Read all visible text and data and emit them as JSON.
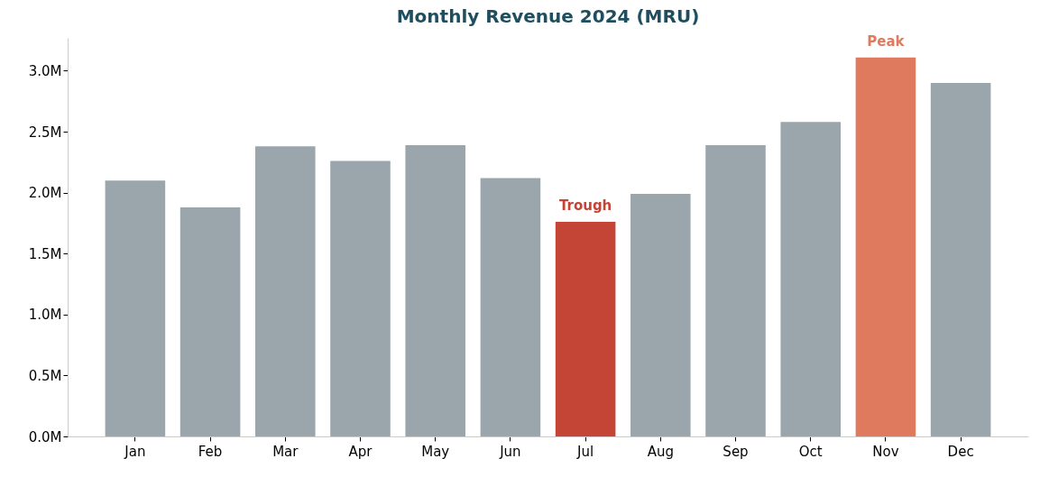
{
  "chart_data": {
    "type": "bar",
    "title": "Monthly Revenue 2024 (MRU)",
    "categories": [
      "Jan",
      "Feb",
      "Mar",
      "Apr",
      "May",
      "Jun",
      "Jul",
      "Aug",
      "Sep",
      "Oct",
      "Nov",
      "Dec"
    ],
    "values": [
      2.1,
      1.88,
      2.38,
      2.26,
      2.39,
      2.12,
      1.76,
      1.99,
      2.39,
      2.58,
      3.11,
      2.9
    ],
    "colors": [
      "#9aa6ab",
      "#9aa6ab",
      "#9aa6ab",
      "#9aa6ab",
      "#9aa6ab",
      "#9aa6ab",
      "#c44536",
      "#9aa6ab",
      "#9aa6ab",
      "#9aa6ab",
      "#e07a5f",
      "#9aa6ab"
    ],
    "ylim": [
      0,
      3.27
    ],
    "yticks": [
      {
        "value": 0,
        "label": "0.0M"
      },
      {
        "value": 0.5,
        "label": "0.5M"
      },
      {
        "value": 1,
        "label": "1.0M"
      },
      {
        "value": 1.5,
        "label": "1.5M"
      },
      {
        "value": 2,
        "label": "2.0M"
      },
      {
        "value": 2.5,
        "label": "2.5M"
      },
      {
        "value": 3,
        "label": "3.0M"
      }
    ],
    "grid": false,
    "annotations": [
      {
        "text": "Trough",
        "x": "Jul",
        "y": 1.76
      },
      {
        "text": "Peak",
        "x": "Nov",
        "y": 3.11
      }
    ]
  }
}
